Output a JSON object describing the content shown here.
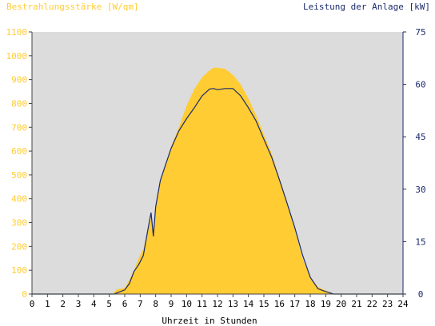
{
  "chart_data": {
    "type": "area",
    "title_left": "Bestrahlungsstärke [W/qm]",
    "title_right": "Leistung der Anlage [kW]",
    "xlabel": "Uhrzeit in Stunden",
    "x_ticks": [
      "0",
      "1",
      "2",
      "3",
      "4",
      "5",
      "6",
      "7",
      "8",
      "9",
      "10",
      "11",
      "12",
      "13",
      "14",
      "15",
      "16",
      "17",
      "18",
      "19",
      "20",
      "21",
      "22",
      "23",
      "24"
    ],
    "xlim": [
      0,
      24
    ],
    "left_axis": {
      "ylim": [
        0,
        1100
      ],
      "ticks": [
        "0",
        "100",
        "200",
        "300",
        "400",
        "500",
        "600",
        "700",
        "800",
        "900",
        "1000",
        "1100"
      ],
      "color": "#ffcc33"
    },
    "right_axis": {
      "ylim": [
        0,
        75
      ],
      "ticks": [
        "0",
        "15",
        "30",
        "45",
        "60",
        "75"
      ],
      "color": "#1a2a6c"
    },
    "series": [
      {
        "name": "Bestrahlungsstärke [W/qm]",
        "kind": "area",
        "axis": "left",
        "color": "#ffcc33",
        "x": [
          0,
          5.2,
          5.5,
          6.0,
          6.3,
          6.6,
          6.9,
          7.2,
          7.5,
          7.7,
          7.85,
          8.0,
          8.3,
          8.6,
          9.0,
          9.5,
          10.0,
          10.5,
          11.0,
          11.5,
          11.75,
          12.0,
          12.5,
          13.0,
          13.5,
          14.0,
          14.5,
          15.0,
          15.5,
          16.0,
          16.5,
          17.0,
          17.5,
          18.0,
          18.5,
          19.0,
          19.3,
          19.5,
          19.7,
          20,
          24
        ],
        "values": [
          0,
          0,
          20,
          25,
          60,
          100,
          150,
          190,
          260,
          320,
          250,
          370,
          480,
          540,
          620,
          700,
          790,
          860,
          910,
          940,
          950,
          950,
          945,
          920,
          880,
          820,
          750,
          670,
          590,
          490,
          390,
          270,
          150,
          70,
          30,
          15,
          5,
          2,
          0,
          0,
          0
        ]
      },
      {
        "name": "Leistung der Anlage [kW]",
        "kind": "line",
        "axis": "right",
        "color": "#1a2a6c",
        "x": [
          0,
          5.3,
          5.6,
          6.0,
          6.3,
          6.6,
          6.9,
          7.2,
          7.5,
          7.7,
          7.85,
          8.0,
          8.3,
          8.6,
          9.0,
          9.5,
          10.0,
          10.5,
          11.0,
          11.5,
          11.75,
          12.0,
          12.5,
          13.0,
          13.5,
          14.0,
          14.5,
          15.0,
          15.5,
          16.0,
          16.5,
          17.0,
          17.5,
          18.0,
          18.5,
          19.0,
          19.3,
          19.5,
          20,
          24
        ],
        "values": [
          0,
          0,
          0.5,
          1.2,
          3,
          6.5,
          8.4,
          11,
          18.5,
          23.3,
          16.5,
          25,
          32.5,
          36.5,
          41.7,
          46.7,
          50.2,
          53.3,
          56.7,
          58.7,
          58.8,
          58.5,
          58.8,
          58.8,
          56.7,
          53.3,
          49.5,
          44.3,
          39.2,
          32.8,
          26,
          19,
          11.2,
          4.8,
          1.5,
          0.7,
          0.3,
          0,
          0,
          0
        ]
      }
    ],
    "grid": false,
    "plot_background": "#dcdcdc"
  }
}
